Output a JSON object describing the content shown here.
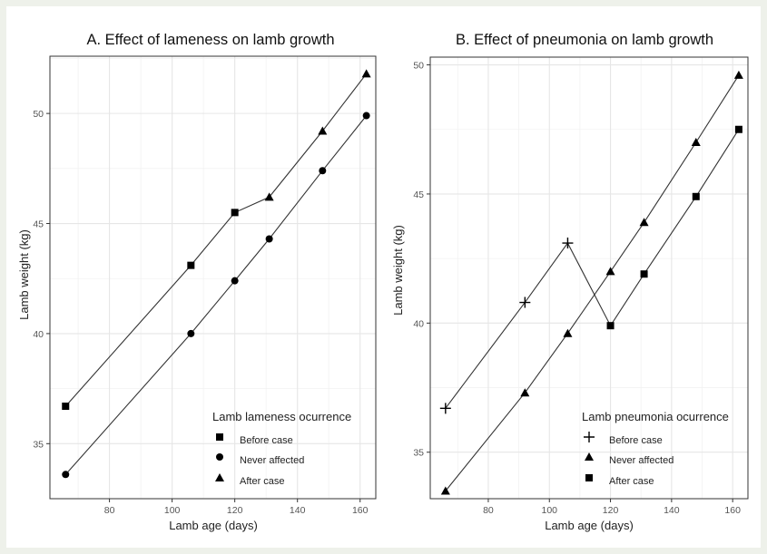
{
  "chart_data": [
    {
      "type": "line",
      "title": "A. Effect of lameness on lamb growth",
      "xlabel": "Lamb age (days)",
      "ylabel": "Lamb weight (kg)",
      "xlim": [
        61,
        165
      ],
      "ylim": [
        32.5,
        52.6
      ],
      "xticks": [
        80,
        100,
        120,
        140,
        160
      ],
      "yticks": [
        35,
        40,
        45,
        50
      ],
      "grid": true,
      "legend": {
        "title": "Lamb lameness ocurrence",
        "placement": "bottom-right",
        "items": [
          {
            "label": "Before case",
            "marker": "square"
          },
          {
            "label": "Never affected",
            "marker": "circle"
          },
          {
            "label": "After case",
            "marker": "triangle"
          }
        ]
      },
      "lines": [
        {
          "points": [
            [
              66,
              36.7
            ],
            [
              106,
              43.1
            ],
            [
              120,
              45.5
            ],
            [
              131,
              46.2
            ],
            [
              148,
              49.2
            ],
            [
              162,
              51.8
            ]
          ]
        },
        {
          "points": [
            [
              66,
              33.6
            ],
            [
              106,
              40.0
            ],
            [
              120,
              42.4
            ],
            [
              131,
              44.3
            ],
            [
              148,
              47.4
            ],
            [
              162,
              49.9
            ]
          ]
        }
      ],
      "series": [
        {
          "name": "Before case",
          "marker": "square",
          "points": [
            [
              66,
              36.7
            ],
            [
              106,
              43.1
            ],
            [
              120,
              45.5
            ]
          ]
        },
        {
          "name": "Never affected",
          "marker": "circle",
          "points": [
            [
              66,
              33.6
            ],
            [
              106,
              40.0
            ],
            [
              120,
              42.4
            ],
            [
              131,
              44.3
            ],
            [
              148,
              47.4
            ],
            [
              162,
              49.9
            ]
          ]
        },
        {
          "name": "After case",
          "marker": "triangle",
          "points": [
            [
              131,
              46.2
            ],
            [
              148,
              49.2
            ],
            [
              162,
              51.8
            ]
          ]
        }
      ]
    },
    {
      "type": "line",
      "title": "B. Effect of pneumonia on lamb growth",
      "xlabel": "Lamb age (days)",
      "ylabel": "Lamb weight (kg)",
      "xlim": [
        61,
        165
      ],
      "ylim": [
        33.2,
        50.3
      ],
      "xticks": [
        80,
        100,
        120,
        140,
        160
      ],
      "yticks": [
        35,
        40,
        45,
        50
      ],
      "grid": true,
      "legend": {
        "title": "Lamb pneumonia ocurrence",
        "placement": "bottom-right",
        "items": [
          {
            "label": "Before case",
            "marker": "plus"
          },
          {
            "label": "Never affected",
            "marker": "triangle"
          },
          {
            "label": "After case",
            "marker": "square"
          }
        ]
      },
      "lines": [
        {
          "points": [
            [
              66,
              36.7
            ],
            [
              92,
              40.8
            ],
            [
              106,
              43.1
            ],
            [
              120,
              39.9
            ],
            [
              131,
              41.9
            ],
            [
              148,
              44.9
            ],
            [
              162,
              47.5
            ]
          ]
        },
        {
          "points": [
            [
              66,
              33.5
            ],
            [
              92,
              37.3
            ],
            [
              106,
              39.6
            ],
            [
              120,
              42.0
            ],
            [
              131,
              43.9
            ],
            [
              148,
              47.0
            ],
            [
              162,
              49.6
            ]
          ]
        }
      ],
      "series": [
        {
          "name": "Before case",
          "marker": "plus",
          "points": [
            [
              66,
              36.7
            ],
            [
              92,
              40.8
            ],
            [
              106,
              43.1
            ]
          ]
        },
        {
          "name": "Never affected",
          "marker": "triangle",
          "points": [
            [
              66,
              33.5
            ],
            [
              92,
              37.3
            ],
            [
              106,
              39.6
            ],
            [
              120,
              42.0
            ],
            [
              131,
              43.9
            ],
            [
              148,
              47.0
            ],
            [
              162,
              49.6
            ]
          ]
        },
        {
          "name": "After case",
          "marker": "square",
          "points": [
            [
              120,
              39.9
            ],
            [
              131,
              41.9
            ],
            [
              148,
              44.9
            ],
            [
              162,
              47.5
            ]
          ]
        }
      ]
    }
  ]
}
